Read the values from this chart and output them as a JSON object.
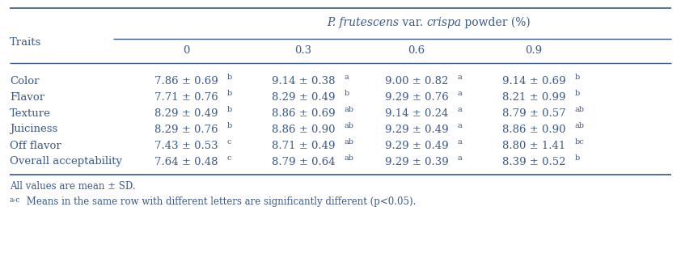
{
  "col_headers": [
    "0",
    "0.3",
    "0.6",
    "0.9"
  ],
  "traits": [
    "Color",
    "Flavor",
    "Texture",
    "Juiciness",
    "Off flavor",
    "Overall acceptability"
  ],
  "cells": [
    [
      "7.86 ± 0.69",
      "b",
      "9.14 ± 0.38",
      "a",
      "9.00 ± 0.82",
      "a",
      "9.14 ± 0.69",
      "b"
    ],
    [
      "7.71 ± 0.76",
      "b",
      "8.29 ± 0.49",
      "b",
      "9.29 ± 0.76",
      "a",
      "8.21 ± 0.99",
      "b"
    ],
    [
      "8.29 ± 0.49",
      "b",
      "8.86 ± 0.69",
      "ab",
      "9.14 ± 0.24",
      "a",
      "8.79 ± 0.57",
      "ab"
    ],
    [
      "8.29 ± 0.76",
      "b",
      "8.86 ± 0.90",
      "ab",
      "9.29 ± 0.49",
      "a",
      "8.86 ± 0.90",
      "ab"
    ],
    [
      "7.43 ± 0.53",
      "c",
      "8.71 ± 0.49",
      "ab",
      "9.29 ± 0.49",
      "a",
      "8.80 ± 1.41",
      "bc"
    ],
    [
      "7.64 ± 0.48",
      "c",
      "8.79 ± 0.64",
      "ab",
      "9.29 ± 0.39",
      "a",
      "8.39 ± 0.52",
      "b"
    ]
  ],
  "footnote1": "All values are mean ± SD.",
  "footnote2": " Means in the same row with different letters are significantly different (p<0.05).",
  "text_color": "#3a5a8a",
  "line_color": "#3a5a8a",
  "bg_color": "#ffffff",
  "font_size": 9.5,
  "title_font_size": 10
}
